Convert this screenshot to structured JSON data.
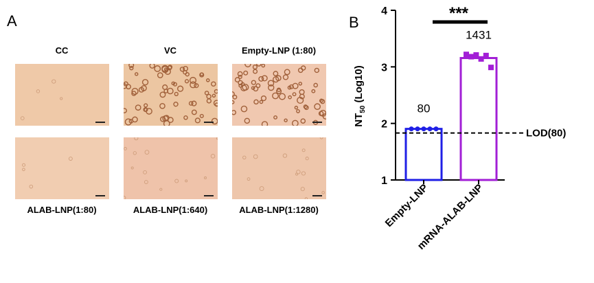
{
  "panel_a": {
    "letter": "A",
    "images": [
      {
        "label": "CC",
        "tone": "#efc9a8",
        "cells": "none"
      },
      {
        "label": "VC",
        "tone": "#ecc6a2",
        "cells": "dense"
      },
      {
        "label": "Empty-LNP (1:80)",
        "tone": "#f0c8b0",
        "cells": "dense"
      },
      {
        "label": "ALAB-LNP(1:80)",
        "tone": "#f1cdb1",
        "cells": "none"
      },
      {
        "label": "ALAB-LNP(1:640)",
        "tone": "#efc3aa",
        "cells": "sparse"
      },
      {
        "label": "ALAB-LNP(1:1280)",
        "tone": "#eec6ab",
        "cells": "sparse"
      }
    ]
  },
  "panel_b": {
    "letter": "B",
    "significance": "***",
    "lod_label": "LOD(80)",
    "colors": {
      "empty": "#1f1fe6",
      "mrna": "#a21fd6"
    }
  },
  "chart_data": {
    "type": "bar",
    "ylabel": "NT50 (Log10)",
    "ylabel_main": "NT",
    "ylabel_sub": "50",
    "ylabel_rest": " (Log10)",
    "ylim": [
      1,
      4
    ],
    "yticks": [
      "1",
      "2",
      "3",
      "4"
    ],
    "categories": [
      "Empty-LNP",
      "mRNA-ALAB-LNP"
    ],
    "values": [
      1.903,
      3.156
    ],
    "bar_labels": [
      "80",
      "1431"
    ],
    "points": [
      [
        1.903,
        1.903,
        1.903,
        1.903,
        1.903
      ],
      [
        3.22,
        3.18,
        3.21,
        3.14,
        3.2,
        2.99
      ]
    ],
    "lod": 1.903
  }
}
